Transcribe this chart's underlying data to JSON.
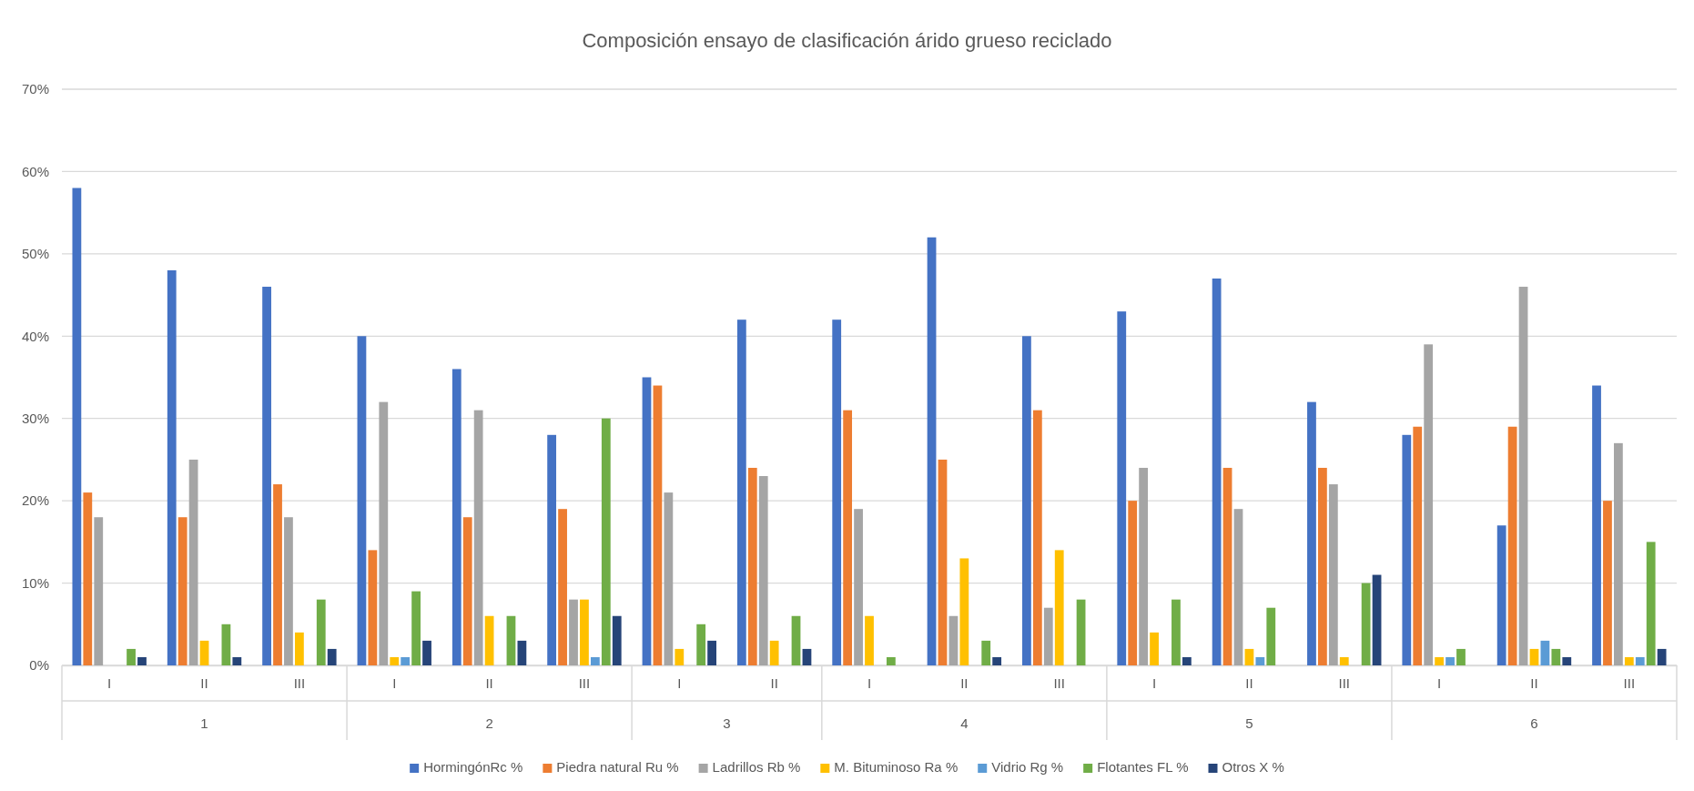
{
  "chart_data": {
    "type": "bar",
    "title": "Composición ensayo de clasificación árido grueso reciclado",
    "categories": [
      "I",
      "II",
      "III",
      "I",
      "II",
      "III",
      "I",
      "II",
      "I",
      "II",
      "III",
      "I",
      "II",
      "III",
      "I",
      "II",
      "III"
    ],
    "annotations": [
      "1",
      "2",
      "3",
      "4",
      "5",
      "6"
    ],
    "series": [
      {
        "name": "HormingónRc %",
        "color": "#4472c4",
        "values": [
          58,
          48,
          46,
          40,
          36,
          28,
          35,
          42,
          42,
          52,
          40,
          43,
          47,
          32,
          28,
          17,
          34
        ]
      },
      {
        "name": "Piedra natural Ru %",
        "color": "#ed7d31",
        "values": [
          21,
          18,
          22,
          14,
          18,
          19,
          34,
          24,
          31,
          25,
          31,
          20,
          24,
          24,
          29,
          29,
          20
        ]
      },
      {
        "name": "Ladrillos Rb %",
        "color": "#a5a5a5",
        "values": [
          18,
          25,
          18,
          32,
          31,
          8,
          21,
          23,
          19,
          6,
          7,
          24,
          19,
          22,
          39,
          46,
          27
        ]
      },
      {
        "name": "M. Bituminoso Ra %",
        "color": "#ffc000",
        "values": [
          0,
          3,
          4,
          1,
          6,
          8,
          2,
          3,
          6,
          13,
          14,
          4,
          2,
          1,
          1,
          2,
          1
        ]
      },
      {
        "name": "Vidrio Rg %",
        "color": "#5b9bd5",
        "values": [
          0,
          0,
          0,
          1,
          0,
          1,
          0,
          0,
          0,
          0,
          0,
          0,
          1,
          0,
          1,
          3,
          1
        ]
      },
      {
        "name": "Flotantes FL %",
        "color": "#70ad47",
        "values": [
          2,
          5,
          8,
          9,
          6,
          30,
          5,
          6,
          1,
          3,
          8,
          8,
          7,
          10,
          2,
          2,
          15
        ]
      },
      {
        "name": "Otros X %",
        "color": "#264478",
        "values": [
          1,
          1,
          2,
          3,
          3,
          6,
          3,
          2,
          0,
          1,
          0,
          1,
          0,
          11,
          0,
          1,
          2
        ]
      }
    ],
    "ylim": [
      0,
      70
    ],
    "yticks": [
      {
        "value": 0,
        "label": "0%"
      },
      {
        "value": 10,
        "label": "10%"
      },
      {
        "value": 20,
        "label": "20%"
      },
      {
        "value": 30,
        "label": "30%"
      },
      {
        "value": 40,
        "label": "40%"
      },
      {
        "value": 50,
        "label": "50%"
      },
      {
        "value": 60,
        "label": "60%"
      },
      {
        "value": 70,
        "label": "70%"
      }
    ],
    "grid": "y",
    "legend": "bottom"
  }
}
